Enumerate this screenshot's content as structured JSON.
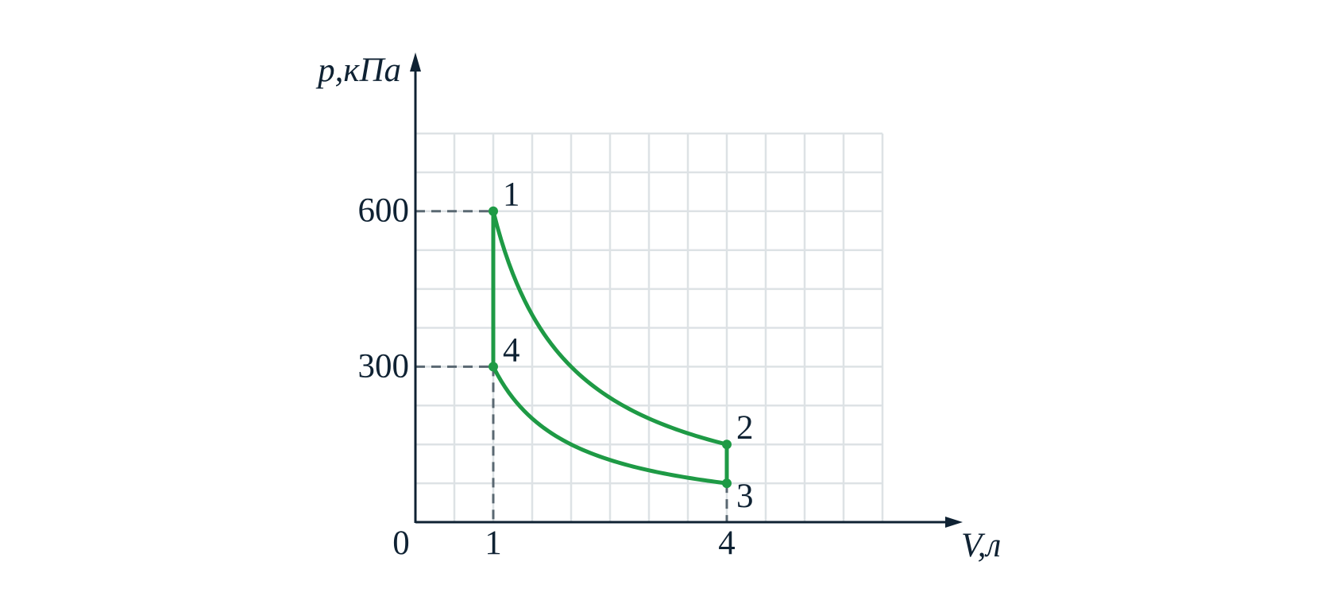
{
  "chart_data": {
    "type": "cycle",
    "x_label": "V,л",
    "y_label": "p,кПа",
    "xlim": [
      0,
      6
    ],
    "ylim": [
      0,
      750
    ],
    "xticks": [
      0,
      1,
      4
    ],
    "yticks": [
      300,
      600
    ],
    "grid": {
      "xstep": 0.5,
      "ystep": 75
    },
    "color": "#1e9a45",
    "points": [
      {
        "label": "1",
        "x": 1,
        "y": 600
      },
      {
        "label": "2",
        "x": 4,
        "y": 150
      },
      {
        "label": "3",
        "x": 4,
        "y": 75
      },
      {
        "label": "4",
        "x": 1,
        "y": 300
      }
    ]
  }
}
